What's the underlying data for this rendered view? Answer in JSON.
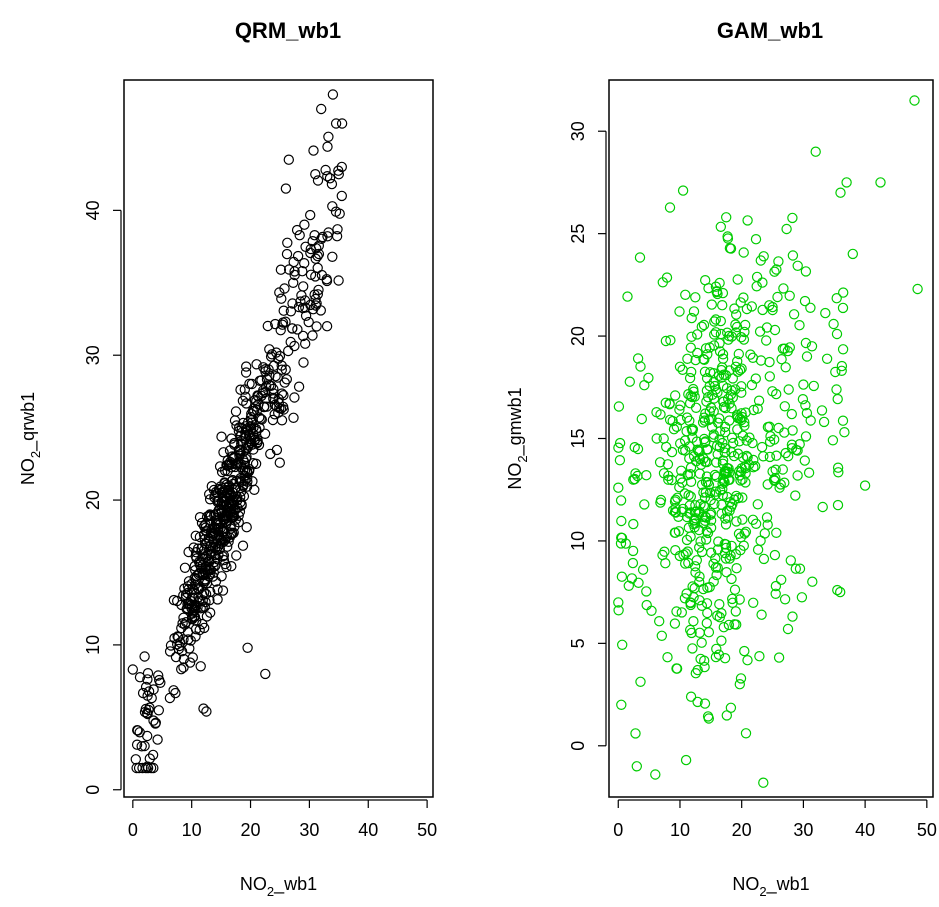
{
  "chart_data": [
    {
      "type": "scatter",
      "title": "QRM_wb1",
      "xlabel": {
        "main": "NO",
        "sub": "2",
        "rest": "_wb1"
      },
      "ylabel": {
        "main": "NO",
        "sub": "2",
        "rest": "_qrwb1"
      },
      "xlim": [
        -1.5,
        51
      ],
      "ylim": [
        -0.5,
        49
      ],
      "xticks": [
        0,
        10,
        20,
        30,
        40,
        50
      ],
      "yticks": [
        0,
        10,
        20,
        30,
        40
      ],
      "color": "#000000",
      "grid": false,
      "point_count": 650,
      "trend": {
        "slope": 1.12,
        "intercept": 1.9,
        "noise_sd": 2.1,
        "x_shape": "concentrated 5-25, tail to 36"
      },
      "notable_points": [
        [
          34,
          48
        ],
        [
          32,
          47
        ],
        [
          26.5,
          43.5
        ],
        [
          35.5,
          43
        ],
        [
          35,
          42.5
        ],
        [
          31,
          42.5
        ],
        [
          26,
          41.5
        ],
        [
          35.5,
          41
        ],
        [
          33,
          32
        ],
        [
          29,
          29.5
        ],
        [
          22.5,
          8
        ],
        [
          19.5,
          9.8
        ],
        [
          2.5,
          1.6
        ],
        [
          0.5,
          2.1
        ],
        [
          1.5,
          3
        ],
        [
          0,
          8.3
        ],
        [
          2,
          9.2
        ],
        [
          12,
          5.6
        ],
        [
          12.5,
          5.4
        ]
      ]
    },
    {
      "type": "scatter",
      "title": "GAM_wb1",
      "xlabel": {
        "main": "NO",
        "sub": "2",
        "rest": "_wb1"
      },
      "ylabel": {
        "main": "NO",
        "sub": "2",
        "rest": "_gmwb1"
      },
      "xlim": [
        -1.5,
        51
      ],
      "ylim": [
        -2.5,
        32.5
      ],
      "xticks": [
        0,
        10,
        20,
        30,
        40,
        50
      ],
      "yticks": [
        0,
        5,
        10,
        15,
        20,
        25,
        30
      ],
      "color": "#00cc00",
      "grid": false,
      "point_count": 650,
      "trend": {
        "slope": 0.18,
        "intercept": 11,
        "noise_sd": 5.0,
        "x_shape": "concentrated 5-25, tail to 49"
      },
      "notable_points": [
        [
          48,
          31.5
        ],
        [
          32,
          29
        ],
        [
          37,
          27.5
        ],
        [
          42.5,
          27.5
        ],
        [
          48.5,
          22.3
        ],
        [
          40,
          12.7
        ],
        [
          35.5,
          7.6
        ],
        [
          27.5,
          5.7
        ],
        [
          23.5,
          -1.8
        ],
        [
          6,
          -1.4
        ],
        [
          3,
          -1
        ],
        [
          11,
          -0.7
        ],
        [
          0,
          12.6
        ],
        [
          0,
          7
        ],
        [
          0.5,
          2
        ],
        [
          10.5,
          27.1
        ]
      ]
    }
  ]
}
